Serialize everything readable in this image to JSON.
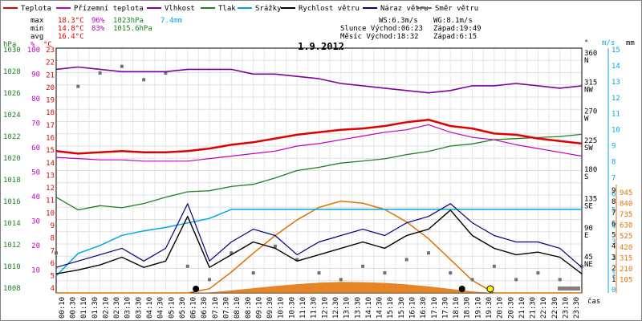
{
  "chart_data": {
    "type": "line",
    "title": "1.9.2012",
    "legend": [
      {
        "label": "Teplota",
        "color": "#e00000"
      },
      {
        "label": "Přízemní teplota",
        "color": "#c000c0"
      },
      {
        "label": "Vlhkost",
        "color": "#8000a0"
      },
      {
        "label": "Tlak",
        "color": "#208020"
      },
      {
        "label": "Srážky",
        "color": "#00a8e0"
      },
      {
        "label": "Rychlost větru",
        "color": "#000000"
      },
      {
        "label": "Náraz větru",
        "color": "#000080"
      },
      {
        "label": "Směr větru",
        "color": "#707070"
      }
    ],
    "stats": {
      "max": {
        "label": "max",
        "temp": "18.3°C",
        "hum": "96%",
        "press": "1023hPa",
        "rain": "7.4mm"
      },
      "min": {
        "label": "min",
        "temp": "14.8°C",
        "hum": "83%",
        "press": "1015.6hPa"
      },
      "avg": {
        "label": "avg",
        "temp": "16.4°C"
      }
    },
    "wind_info": {
      "ws": "WS:6.3m/s",
      "wg": "WG:8.1m/s"
    },
    "sun_moon": {
      "sun": "Slunce Východ:06:23",
      "sun_set": "Západ:19:49",
      "moon": "Měsíc  Východ:18:32",
      "moon_set": "Západ:6:15"
    },
    "axes": {
      "hpa": {
        "label": "hPa",
        "ticks": [
          "1030",
          "1028",
          "1026",
          "1024",
          "1022",
          "1020",
          "1018",
          "1016",
          "1014",
          "1012",
          "1010",
          "1008"
        ],
        "color": "#208020"
      },
      "pct": {
        "label": "%",
        "ticks": [
          "100",
          "90",
          "80",
          "70",
          "60",
          "50",
          "40",
          "30",
          "20",
          "10"
        ],
        "color": "#c000c0"
      },
      "temp": {
        "label": "°C",
        "ticks": [
          "23",
          "22",
          "21",
          "20",
          "19",
          "18",
          "17",
          "16",
          "15",
          "14",
          "13",
          "12",
          "11",
          "10",
          "9",
          "8",
          "7",
          "6",
          "5",
          "4"
        ],
        "color": "#e00000"
      },
      "dir": {
        "label": "°",
        "ticks": [
          {
            "deg": "360",
            "dir": "N"
          },
          {
            "deg": "315",
            "dir": "NW"
          },
          {
            "deg": "270",
            "dir": "W"
          },
          {
            "deg": "225",
            "dir": "SW"
          },
          {
            "deg": "180",
            "dir": "S"
          },
          {
            "deg": "135",
            "dir": "SE"
          },
          {
            "deg": "90",
            "dir": "E"
          },
          {
            "deg": "45",
            "dir": "NE"
          }
        ]
      },
      "ms": {
        "label": "m/s",
        "ticks": [
          "15",
          "14",
          "13",
          "12",
          "11",
          "10",
          "9",
          "8",
          "7",
          "6",
          "5",
          "4",
          "3",
          "2",
          "1",
          "0"
        ],
        "color": "#00a8e0"
      },
      "mm": {
        "label": "mm",
        "ticks": [
          "9",
          "8",
          "7",
          "6",
          "5",
          "4",
          "3",
          "2",
          "1"
        ]
      },
      "solar": {
        "ticks": [
          "945",
          "840",
          "735",
          "630",
          "525",
          "420",
          "315",
          "210",
          "105"
        ],
        "color": "#e07000"
      },
      "time": {
        "label": "čas",
        "ticks": [
          "00:10",
          "00:30",
          "01:10",
          "01:30",
          "02:10",
          "02:30",
          "03:10",
          "03:30",
          "04:10",
          "04:30",
          "05:10",
          "05:30",
          "06:10",
          "06:30",
          "07:10",
          "07:30",
          "08:10",
          "08:30",
          "09:10",
          "09:30",
          "10:10",
          "10:30",
          "11:10",
          "11:30",
          "12:10",
          "12:30",
          "13:10",
          "13:30",
          "14:10",
          "14:30",
          "15:10",
          "15:30",
          "16:10",
          "16:30",
          "17:10",
          "17:30",
          "18:10",
          "18:30",
          "19:10",
          "19:30",
          "20:10",
          "20:30",
          "21:10",
          "21:30",
          "22:10",
          "22:30",
          "23:10",
          "23:30"
        ]
      }
    },
    "x_hours": [
      0,
      1,
      2,
      3,
      4,
      5,
      6,
      7,
      8,
      9,
      10,
      11,
      12,
      13,
      14,
      15,
      16,
      17,
      18,
      19,
      20,
      21,
      22,
      23,
      24
    ],
    "series": [
      {
        "name": "Teplota",
        "unit": "°C",
        "color": "#e00000",
        "values": [
          15.3,
          15.1,
          15.2,
          15.3,
          15.2,
          15.2,
          15.3,
          15.5,
          15.8,
          16.0,
          16.3,
          16.6,
          16.8,
          17.0,
          17.1,
          17.3,
          17.6,
          17.8,
          17.3,
          17.1,
          16.7,
          16.6,
          16.3,
          16.1,
          15.9
        ]
      },
      {
        "name": "Přízemní teplota",
        "unit": "°C",
        "color": "#c000c0",
        "values": [
          14.8,
          14.7,
          14.6,
          14.6,
          14.5,
          14.5,
          14.5,
          14.7,
          14.9,
          15.1,
          15.3,
          15.7,
          15.9,
          16.2,
          16.5,
          16.8,
          17.0,
          17.4,
          16.8,
          16.4,
          16.2,
          15.8,
          15.5,
          15.2,
          14.9
        ]
      },
      {
        "name": "Vlhkost",
        "unit": "%",
        "color": "#8000a0",
        "values": [
          95,
          96,
          95,
          94,
          94,
          94,
          95,
          95,
          95,
          93,
          93,
          92,
          91,
          89,
          88,
          87,
          86,
          85,
          86,
          88,
          88,
          89,
          88,
          87,
          88
        ]
      },
      {
        "name": "Tlak",
        "unit": "hPa",
        "color": "#208020",
        "values": [
          1017.0,
          1015.8,
          1016.2,
          1016.0,
          1016.4,
          1017.0,
          1017.5,
          1017.6,
          1018.0,
          1018.2,
          1018.8,
          1019.5,
          1019.8,
          1020.2,
          1020.4,
          1020.6,
          1021.0,
          1021.3,
          1021.8,
          1022.0,
          1022.4,
          1022.5,
          1022.6,
          1022.7,
          1022.9
        ]
      },
      {
        "name": "Srážky",
        "unit": "mm",
        "color": "#00a8e0",
        "values": [
          1.5,
          3.5,
          4.2,
          5.1,
          5.5,
          5.8,
          6.2,
          6.6,
          7.4,
          7.4,
          7.4,
          7.4,
          7.4,
          7.4,
          7.4,
          7.4,
          7.4,
          7.4,
          7.4,
          7.4,
          7.4,
          7.4,
          7.4,
          7.4,
          7.4
        ]
      },
      {
        "name": "Rychlost větru",
        "unit": "m/s",
        "color": "#000000",
        "values": [
          1.5,
          1.8,
          2.2,
          2.8,
          2.0,
          2.5,
          6.0,
          2.0,
          3.0,
          4.0,
          3.5,
          2.5,
          3.0,
          3.5,
          4.0,
          3.5,
          4.5,
          5.0,
          6.5,
          4.5,
          3.5,
          3.0,
          3.2,
          2.8,
          1.5
        ]
      },
      {
        "name": "Náraz větru",
        "unit": "m/s",
        "color": "#000080",
        "values": [
          2.0,
          2.5,
          3.0,
          3.5,
          2.5,
          3.5,
          7.0,
          2.5,
          4.0,
          5.0,
          4.5,
          3.0,
          4.0,
          4.5,
          5.0,
          4.5,
          5.5,
          6.0,
          7.0,
          5.5,
          4.5,
          4.0,
          4.0,
          3.5,
          2.0
        ]
      },
      {
        "name": "Směr větru",
        "unit": "°",
        "color": "#707070",
        "values": [
          60,
          310,
          330,
          340,
          320,
          330,
          40,
          20,
          60,
          30,
          70,
          50,
          30,
          20,
          40,
          30,
          50,
          60,
          30,
          20,
          40,
          20,
          30,
          20,
          40
        ]
      },
      {
        "name": "Sluneční záření",
        "unit": "W/m²",
        "color": "#e07000",
        "values": [
          0,
          0,
          0,
          0,
          0,
          0,
          0,
          40,
          200,
          380,
          550,
          700,
          820,
          880,
          860,
          800,
          680,
          520,
          320,
          120,
          0,
          0,
          0,
          0,
          0
        ]
      }
    ]
  }
}
